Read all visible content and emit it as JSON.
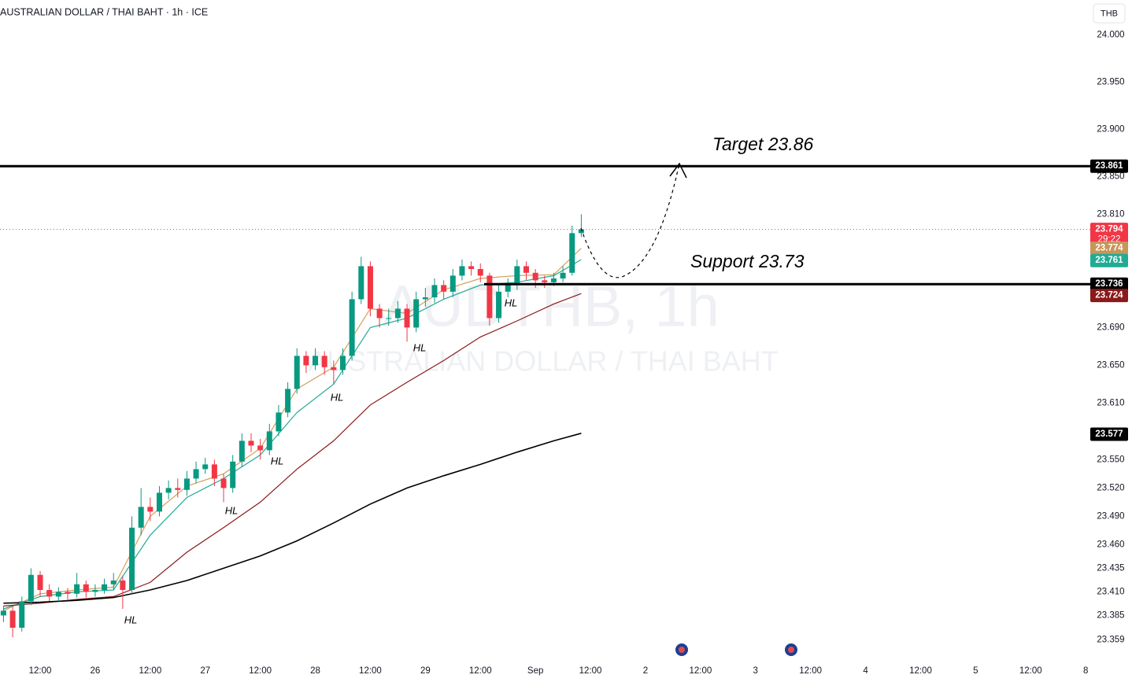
{
  "chart_data": {
    "type": "candlestick",
    "title": "AUSTRALIAN DOLLAR / THAI BAHT · 1h · ICE",
    "currency_button": "THB",
    "watermark": "AUDTHB, 1h",
    "watermark_subtitle": "AUSTRALIAN DOLLAR / THAI BAHT",
    "countdown": "29:22",
    "target_text": "Target 23.86",
    "support_text": "Support 23.73",
    "hl_labels": [
      "HL",
      "HL",
      "HL",
      "HL",
      "HL",
      "HL"
    ],
    "up_color": "#089981",
    "down_color": "#f23645",
    "xlim": [
      -8.76,
      229
    ],
    "ylim": [
      23.337,
      24.037
    ],
    "xticks": [
      {
        "value": 0,
        "label": "12:00"
      },
      {
        "value": 12,
        "label": "26"
      },
      {
        "value": 24,
        "label": "12:00"
      },
      {
        "value": 36,
        "label": "27"
      },
      {
        "value": 48,
        "label": "12:00"
      },
      {
        "value": 60,
        "label": "28"
      },
      {
        "value": 72,
        "label": "12:00"
      },
      {
        "value": 84,
        "label": "29"
      },
      {
        "value": 96,
        "label": "12:00"
      },
      {
        "value": 108,
        "label": "Sep"
      },
      {
        "value": 120,
        "label": "12:00"
      },
      {
        "value": 132,
        "label": "2"
      },
      {
        "value": 144,
        "label": "12:00"
      },
      {
        "value": 156,
        "label": "3"
      },
      {
        "value": 168,
        "label": "12:00"
      },
      {
        "value": 180,
        "label": "4"
      },
      {
        "value": 192,
        "label": "12:00"
      },
      {
        "value": 204,
        "label": "5"
      },
      {
        "value": 216,
        "label": "12:00"
      },
      {
        "value": 228,
        "label": "8"
      }
    ],
    "yticks": [
      {
        "value": 24.0,
        "label": "24.000"
      },
      {
        "value": 23.95,
        "label": "23.950"
      },
      {
        "value": 23.9,
        "label": "23.900"
      },
      {
        "value": 23.85,
        "label": "23.850"
      },
      {
        "value": 23.81,
        "label": "23.810"
      },
      {
        "value": 23.69,
        "label": "23.690"
      },
      {
        "value": 23.65,
        "label": "23.650"
      },
      {
        "value": 23.61,
        "label": "23.610"
      },
      {
        "value": 23.55,
        "label": "23.550"
      },
      {
        "value": 23.52,
        "label": "23.520"
      },
      {
        "value": 23.49,
        "label": "23.490"
      },
      {
        "value": 23.46,
        "label": "23.460"
      },
      23.435,
      {
        "value": 23.41,
        "label": "23.410"
      },
      23.385,
      23.359
    ],
    "x": [
      -8,
      -6,
      -4,
      -2,
      0,
      2,
      4,
      6,
      8,
      10,
      12,
      14,
      16,
      18,
      20,
      22,
      24,
      26,
      28,
      30,
      32,
      34,
      36,
      38,
      40,
      42,
      44,
      46,
      48,
      50,
      52,
      54,
      56,
      58,
      60,
      62,
      64,
      66,
      68,
      70,
      72,
      74,
      76,
      78,
      80,
      82,
      84,
      86,
      88,
      90,
      92,
      94,
      96,
      98,
      100,
      102,
      104,
      106,
      108,
      110,
      112,
      114,
      116,
      118
    ],
    "open": [
      23.385,
      23.39,
      23.372,
      23.4,
      23.428,
      23.412,
      23.405,
      23.41,
      23.408,
      23.418,
      23.41,
      23.412,
      23.418,
      23.422,
      23.412,
      23.478,
      23.5,
      23.495,
      23.515,
      23.52,
      23.518,
      23.53,
      23.54,
      23.545,
      23.53,
      23.52,
      23.548,
      23.57,
      23.565,
      23.56,
      23.58,
      23.6,
      23.625,
      23.66,
      23.65,
      23.66,
      23.648,
      23.645,
      23.66,
      23.72,
      23.755,
      23.71,
      23.7,
      23.7,
      23.71,
      23.69,
      23.72,
      23.722,
      23.735,
      23.728,
      23.745,
      23.755,
      23.752,
      23.745,
      23.7,
      23.728,
      23.735,
      23.755,
      23.748,
      23.74,
      23.738,
      23.742,
      23.748,
      23.79
    ],
    "high": [
      23.395,
      23.395,
      23.405,
      23.435,
      23.432,
      23.418,
      23.415,
      23.414,
      23.43,
      23.422,
      23.418,
      23.424,
      23.43,
      23.426,
      23.49,
      23.52,
      23.51,
      23.522,
      23.528,
      23.53,
      23.538,
      23.548,
      23.552,
      23.55,
      23.535,
      23.555,
      23.578,
      23.578,
      23.572,
      23.588,
      23.608,
      23.632,
      23.668,
      23.665,
      23.668,
      23.665,
      23.655,
      23.668,
      23.728,
      23.765,
      23.76,
      23.715,
      23.71,
      23.718,
      23.715,
      23.728,
      23.732,
      23.742,
      23.74,
      23.752,
      23.762,
      23.76,
      23.758,
      23.748,
      23.735,
      23.742,
      23.762,
      23.76,
      23.752,
      23.745,
      23.748,
      23.755,
      23.798,
      23.81
    ],
    "low": [
      23.378,
      23.362,
      23.368,
      23.396,
      23.405,
      23.4,
      23.4,
      23.402,
      23.404,
      23.404,
      23.405,
      23.408,
      23.412,
      23.392,
      23.408,
      23.47,
      23.485,
      23.49,
      23.508,
      23.51,
      23.512,
      23.525,
      23.535,
      23.522,
      23.505,
      23.515,
      23.542,
      23.558,
      23.55,
      23.555,
      23.575,
      23.595,
      23.62,
      23.642,
      23.645,
      23.64,
      23.63,
      23.64,
      23.655,
      23.715,
      23.702,
      23.69,
      23.692,
      23.695,
      23.675,
      23.685,
      23.712,
      23.716,
      23.72,
      23.722,
      23.74,
      23.745,
      23.738,
      23.692,
      23.695,
      23.722,
      23.73,
      23.74,
      23.732,
      23.732,
      23.734,
      23.738,
      23.745,
      23.786
    ],
    "close": [
      23.39,
      23.372,
      23.4,
      23.428,
      23.412,
      23.405,
      23.41,
      23.408,
      23.418,
      23.41,
      23.412,
      23.418,
      23.422,
      23.412,
      23.478,
      23.5,
      23.495,
      23.515,
      23.52,
      23.518,
      23.53,
      23.54,
      23.545,
      23.53,
      23.52,
      23.548,
      23.57,
      23.565,
      23.56,
      23.58,
      23.6,
      23.625,
      23.66,
      23.65,
      23.66,
      23.648,
      23.645,
      23.66,
      23.72,
      23.755,
      23.71,
      23.7,
      23.7,
      23.71,
      23.69,
      23.72,
      23.722,
      23.735,
      23.728,
      23.745,
      23.755,
      23.752,
      23.745,
      23.7,
      23.728,
      23.735,
      23.755,
      23.748,
      23.74,
      23.738,
      23.742,
      23.748,
      23.79,
      23.794
    ],
    "series": [
      {
        "color": "#d4a15a",
        "x": [
          -8,
          0,
          8,
          16,
          24,
          32,
          40,
          48,
          56,
          64,
          72,
          80,
          88,
          96,
          104,
          112,
          118
        ],
        "values": [
          23.39,
          23.408,
          23.412,
          23.415,
          23.49,
          23.522,
          23.535,
          23.562,
          23.625,
          23.648,
          23.71,
          23.705,
          23.73,
          23.742,
          23.745,
          23.746,
          23.774
        ]
      },
      {
        "color": "#22ab94",
        "x": [
          -8,
          0,
          8,
          16,
          24,
          32,
          40,
          48,
          56,
          64,
          72,
          80,
          88,
          96,
          104,
          112,
          118
        ],
        "values": [
          23.392,
          23.405,
          23.41,
          23.412,
          23.47,
          23.51,
          23.53,
          23.555,
          23.6,
          23.63,
          23.69,
          23.7,
          23.72,
          23.735,
          23.738,
          23.745,
          23.762
        ]
      },
      {
        "color": "#8b1a1a",
        "x": [
          -8,
          0,
          8,
          16,
          24,
          32,
          40,
          48,
          56,
          64,
          72,
          80,
          88,
          96,
          104,
          112,
          118
        ],
        "values": [
          23.395,
          23.398,
          23.402,
          23.405,
          23.42,
          23.452,
          23.478,
          23.505,
          23.54,
          23.57,
          23.608,
          23.632,
          23.655,
          23.68,
          23.697,
          23.715,
          23.726
        ]
      },
      {
        "color": "#000000",
        "x": [
          -8,
          0,
          8,
          16,
          24,
          32,
          40,
          48,
          56,
          64,
          72,
          80,
          88,
          96,
          104,
          112,
          118
        ],
        "values": [
          23.398,
          23.399,
          23.401,
          23.404,
          23.412,
          23.422,
          23.435,
          23.448,
          23.464,
          23.483,
          23.503,
          23.52,
          23.533,
          23.545,
          23.558,
          23.57,
          23.578
        ]
      }
    ],
    "price_labels": [
      {
        "value": 23.861,
        "color": "#000000"
      },
      {
        "value": 23.794,
        "color": "#f23645"
      },
      {
        "value": 23.774,
        "color": "#c8955a"
      },
      {
        "value": 23.761,
        "color": "#22ab94"
      },
      {
        "value": 23.736,
        "color": "#000000"
      },
      {
        "value": 23.724,
        "color": "#8b1a1a"
      },
      {
        "value": 23.577,
        "color": "#000000"
      }
    ]
  }
}
